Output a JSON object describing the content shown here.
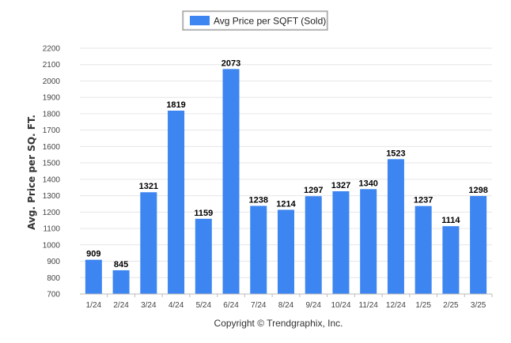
{
  "chart_data": {
    "type": "bar",
    "categories": [
      "1/24",
      "2/24",
      "3/24",
      "4/24",
      "5/24",
      "6/24",
      "7/24",
      "8/24",
      "9/24",
      "10/24",
      "11/24",
      "12/24",
      "1/25",
      "2/25",
      "3/25"
    ],
    "series": [
      {
        "name": "Avg Price per SQFT (Sold)",
        "values": [
          909,
          845,
          1321,
          1819,
          1159,
          2073,
          1238,
          1214,
          1297,
          1327,
          1340,
          1523,
          1237,
          1114,
          1298
        ]
      }
    ],
    "data_labels": [
      "909",
      "845",
      "1321",
      "1819",
      "1159",
      "2073",
      "1238",
      "1214",
      "1297",
      "1327",
      "1340",
      "1523",
      "1237",
      "1114",
      "1298"
    ],
    "xlabel": "",
    "ylabel": "Avg. Price per SQ. FT.",
    "ylim": [
      700,
      2200
    ],
    "yticks": [
      700,
      800,
      900,
      1000,
      1100,
      1200,
      1300,
      1400,
      1500,
      1600,
      1700,
      1800,
      1900,
      2000,
      2100,
      2200
    ],
    "grid": true,
    "legend_position": "top-center",
    "bar_color": "#3d85f0",
    "credit": "Copyright © Trendgraphix, Inc."
  }
}
